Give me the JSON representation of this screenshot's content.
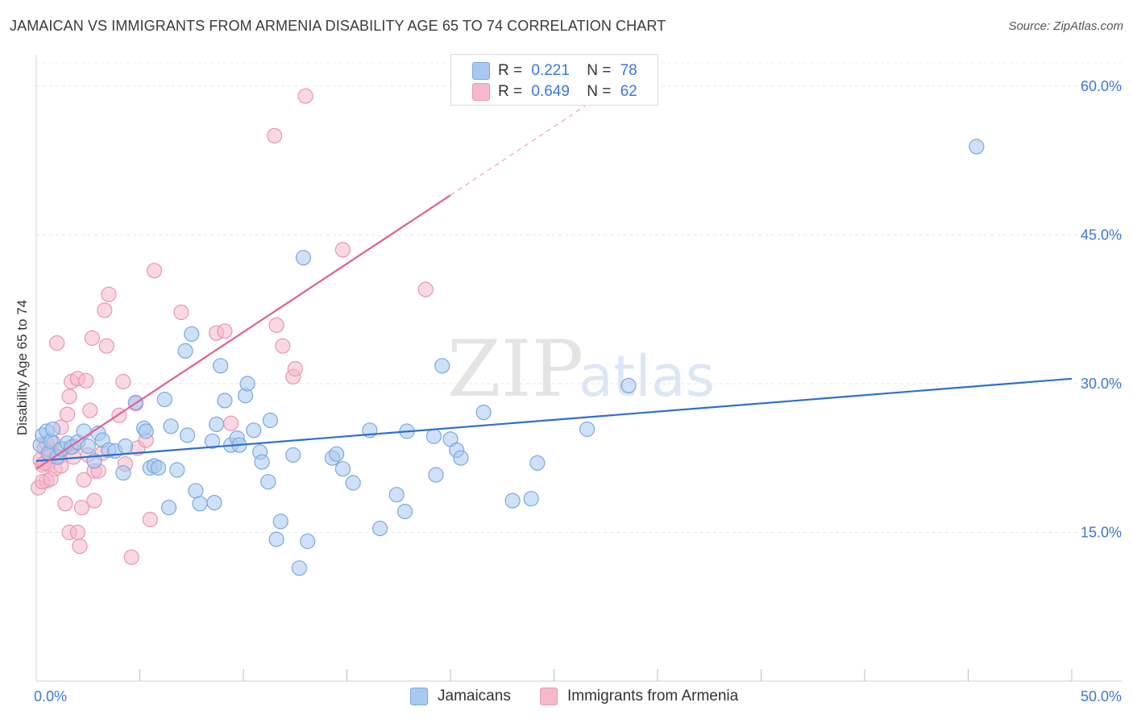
{
  "title": "JAMAICAN VS IMMIGRANTS FROM ARMENIA DISABILITY AGE 65 TO 74 CORRELATION CHART",
  "source": "Source: ZipAtlas.com",
  "watermark": {
    "zip": "ZIP",
    "atlas": "atlas"
  },
  "legend_top": [
    {
      "r_label": "R =",
      "r_value": "0.221",
      "n_label": "N =",
      "n_value": "78",
      "color": "#a8c8f0"
    },
    {
      "r_label": "R =",
      "r_value": "0.649",
      "n_label": "N =",
      "n_value": "62",
      "color": "#f6b8cb"
    }
  ],
  "legend_bottom": [
    {
      "label": "Jamaicans",
      "color": "#a8c8f0"
    },
    {
      "label": "Immigrants from Armenia",
      "color": "#f6b8cb"
    }
  ],
  "chart_data": {
    "type": "scatter",
    "title": "JAMAICAN VS IMMIGRANTS FROM ARMENIA DISABILITY AGE 65 TO 74 CORRELATION CHART",
    "xlabel": "",
    "ylabel": "Disability Age 65 to 74",
    "xlim": [
      0,
      50
    ],
    "ylim": [
      0,
      63
    ],
    "x_tick_labels": [
      {
        "value": 0,
        "label": "0.0%"
      },
      {
        "value": 50,
        "label": "50.0%"
      }
    ],
    "y_tick_labels": [
      {
        "value": 15,
        "label": "15.0%"
      },
      {
        "value": 30,
        "label": "30.0%"
      },
      {
        "value": 45,
        "label": "45.0%"
      },
      {
        "value": 60,
        "label": "60.0%"
      }
    ],
    "x_minor_ticks": [
      5,
      10,
      15,
      20,
      25,
      30,
      35,
      40,
      45,
      50
    ],
    "grid": true,
    "series": [
      {
        "name": "Jamaicans",
        "color": "#a8c8f0",
        "stroke": "#7aa8e0",
        "trend": {
          "x0": 0,
          "y0": 22.2,
          "x1": 50,
          "y1": 30.5,
          "color": "#2e6fd0"
        },
        "points": [
          [
            0.2,
            23.8
          ],
          [
            0.3,
            24.8
          ],
          [
            0.5,
            25.2
          ],
          [
            0.6,
            23.0
          ],
          [
            0.7,
            24.2
          ],
          [
            0.8,
            25.4
          ],
          [
            1.0,
            22.6
          ],
          [
            1.2,
            23.4
          ],
          [
            1.5,
            24.0
          ],
          [
            1.7,
            23.6
          ],
          [
            2.0,
            24.1
          ],
          [
            2.3,
            25.2
          ],
          [
            2.5,
            23.7
          ],
          [
            2.8,
            22.2
          ],
          [
            3.0,
            25.0
          ],
          [
            3.2,
            24.3
          ],
          [
            3.5,
            23.3
          ],
          [
            3.8,
            23.2
          ],
          [
            4.2,
            21.0
          ],
          [
            4.3,
            23.7
          ],
          [
            4.8,
            28.1
          ],
          [
            5.2,
            25.5
          ],
          [
            5.3,
            25.2
          ],
          [
            5.5,
            21.5
          ],
          [
            5.7,
            21.7
          ],
          [
            5.9,
            21.5
          ],
          [
            6.2,
            28.4
          ],
          [
            6.4,
            17.5
          ],
          [
            6.5,
            25.7
          ],
          [
            6.8,
            21.3
          ],
          [
            7.2,
            33.3
          ],
          [
            7.3,
            24.8
          ],
          [
            7.5,
            35.0
          ],
          [
            7.7,
            19.2
          ],
          [
            7.9,
            17.9
          ],
          [
            8.5,
            24.2
          ],
          [
            8.6,
            18.0
          ],
          [
            8.7,
            25.9
          ],
          [
            8.9,
            31.8
          ],
          [
            9.1,
            28.3
          ],
          [
            9.4,
            23.8
          ],
          [
            9.7,
            24.5
          ],
          [
            9.8,
            23.8
          ],
          [
            10.1,
            28.8
          ],
          [
            10.2,
            30.0
          ],
          [
            10.5,
            25.3
          ],
          [
            10.8,
            23.1
          ],
          [
            10.9,
            22.1
          ],
          [
            11.2,
            20.1
          ],
          [
            11.3,
            26.3
          ],
          [
            11.6,
            14.3
          ],
          [
            11.8,
            16.1
          ],
          [
            12.4,
            22.8
          ],
          [
            12.7,
            11.4
          ],
          [
            12.9,
            42.7
          ],
          [
            13.1,
            14.1
          ],
          [
            14.3,
            22.5
          ],
          [
            14.5,
            22.9
          ],
          [
            14.8,
            21.4
          ],
          [
            15.3,
            20.0
          ],
          [
            16.1,
            25.3
          ],
          [
            16.6,
            15.4
          ],
          [
            17.4,
            18.8
          ],
          [
            17.8,
            17.1
          ],
          [
            17.9,
            25.2
          ],
          [
            19.2,
            24.7
          ],
          [
            19.3,
            20.8
          ],
          [
            19.6,
            31.8
          ],
          [
            20.0,
            24.4
          ],
          [
            20.3,
            23.3
          ],
          [
            20.5,
            22.5
          ],
          [
            21.6,
            27.1
          ],
          [
            23.0,
            18.2
          ],
          [
            23.9,
            18.4
          ],
          [
            24.2,
            22.0
          ],
          [
            26.6,
            25.4
          ],
          [
            28.6,
            29.8
          ],
          [
            45.4,
            53.9
          ]
        ]
      },
      {
        "name": "Immigrants from Armenia",
        "color": "#f6b8cb",
        "stroke": "#e896b0",
        "trend": {
          "x0": 0,
          "y0": 21.4,
          "x1": 20,
          "y1": 49.0,
          "color": "#e06090"
        },
        "trend_dashed": {
          "x0": 20,
          "y0": 49.0,
          "x1": 26.5,
          "y1": 58.0
        },
        "points": [
          [
            0.1,
            19.5
          ],
          [
            0.2,
            22.3
          ],
          [
            0.3,
            21.8
          ],
          [
            0.4,
            23.5
          ],
          [
            0.5,
            20.2
          ],
          [
            0.6,
            22.0
          ],
          [
            0.7,
            23.2
          ],
          [
            0.8,
            24.1
          ],
          [
            0.9,
            21.4
          ],
          [
            1.0,
            34.1
          ],
          [
            1.1,
            22.6
          ],
          [
            1.2,
            21.7
          ],
          [
            1.3,
            23.4
          ],
          [
            1.4,
            17.9
          ],
          [
            1.5,
            26.9
          ],
          [
            1.6,
            28.7
          ],
          [
            1.6,
            15.0
          ],
          [
            1.7,
            30.2
          ],
          [
            1.8,
            23.7
          ],
          [
            2.0,
            15.0
          ],
          [
            2.0,
            30.5
          ],
          [
            2.1,
            13.6
          ],
          [
            2.2,
            17.5
          ],
          [
            2.3,
            20.3
          ],
          [
            2.4,
            30.3
          ],
          [
            2.5,
            22.8
          ],
          [
            2.6,
            27.3
          ],
          [
            2.7,
            34.6
          ],
          [
            2.8,
            21.2
          ],
          [
            2.8,
            18.2
          ],
          [
            3.0,
            21.2
          ],
          [
            3.2,
            23.0
          ],
          [
            3.3,
            37.4
          ],
          [
            3.4,
            33.8
          ],
          [
            3.5,
            39.0
          ],
          [
            4.0,
            26.8
          ],
          [
            4.2,
            30.2
          ],
          [
            4.3,
            21.9
          ],
          [
            4.6,
            12.5
          ],
          [
            4.8,
            28.0
          ],
          [
            4.9,
            23.5
          ],
          [
            5.3,
            24.3
          ],
          [
            5.5,
            16.3
          ],
          [
            5.7,
            41.4
          ],
          [
            7.0,
            37.2
          ],
          [
            8.7,
            35.1
          ],
          [
            9.1,
            35.3
          ],
          [
            9.4,
            26.0
          ],
          [
            11.5,
            55.0
          ],
          [
            11.6,
            35.9
          ],
          [
            11.9,
            33.8
          ],
          [
            12.4,
            30.7
          ],
          [
            12.5,
            31.5
          ],
          [
            13.0,
            59.0
          ],
          [
            14.8,
            43.5
          ],
          [
            18.8,
            39.5
          ],
          [
            0.3,
            20.1
          ],
          [
            0.5,
            24.0
          ],
          [
            1.2,
            25.6
          ],
          [
            1.8,
            22.6
          ],
          [
            0.7,
            20.4
          ],
          [
            0.4,
            22.0
          ]
        ]
      }
    ]
  }
}
